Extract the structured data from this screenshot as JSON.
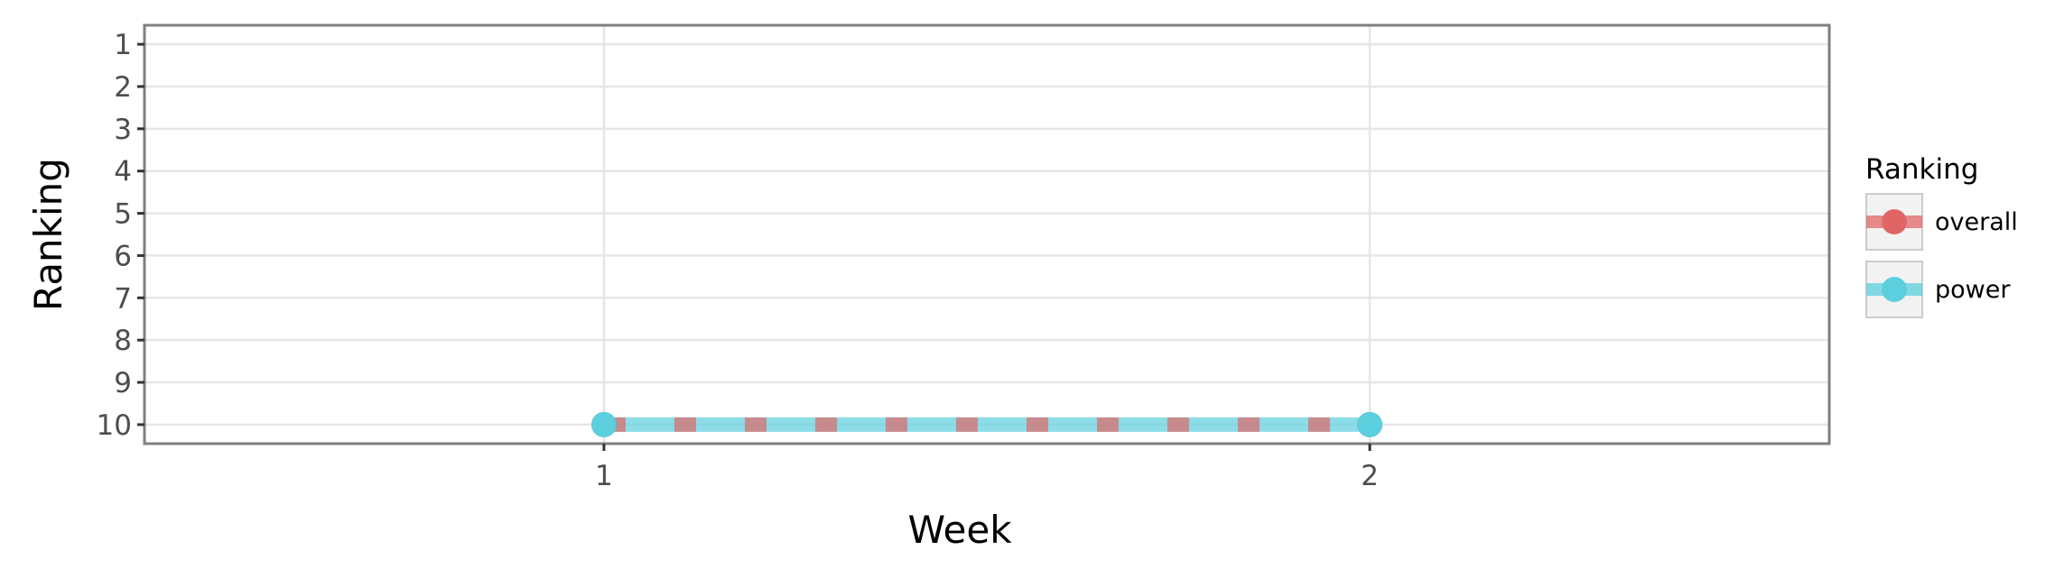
{
  "chart_data": {
    "type": "line",
    "title": "",
    "xlabel": "Week",
    "ylabel": "Ranking",
    "x_ticks": [
      "1",
      "2"
    ],
    "y_ticks": [
      "1",
      "2",
      "3",
      "4",
      "5",
      "6",
      "7",
      "8",
      "9",
      "10"
    ],
    "xlim": [
      0.4,
      2.6
    ],
    "ylim": [
      10.45,
      0.55
    ],
    "y_reversed": true,
    "grid": true,
    "legend": {
      "title": "Ranking",
      "placement": "right",
      "entries": [
        "overall",
        "power"
      ]
    },
    "series": [
      {
        "name": "overall",
        "color": "#E06666",
        "x": [
          1,
          2
        ],
        "y": [
          10,
          10
        ],
        "line_style": "dashed"
      },
      {
        "name": "power",
        "color": "#5BCFDE",
        "x": [
          1,
          2
        ],
        "y": [
          10,
          10
        ],
        "line_style": "solid"
      }
    ]
  }
}
